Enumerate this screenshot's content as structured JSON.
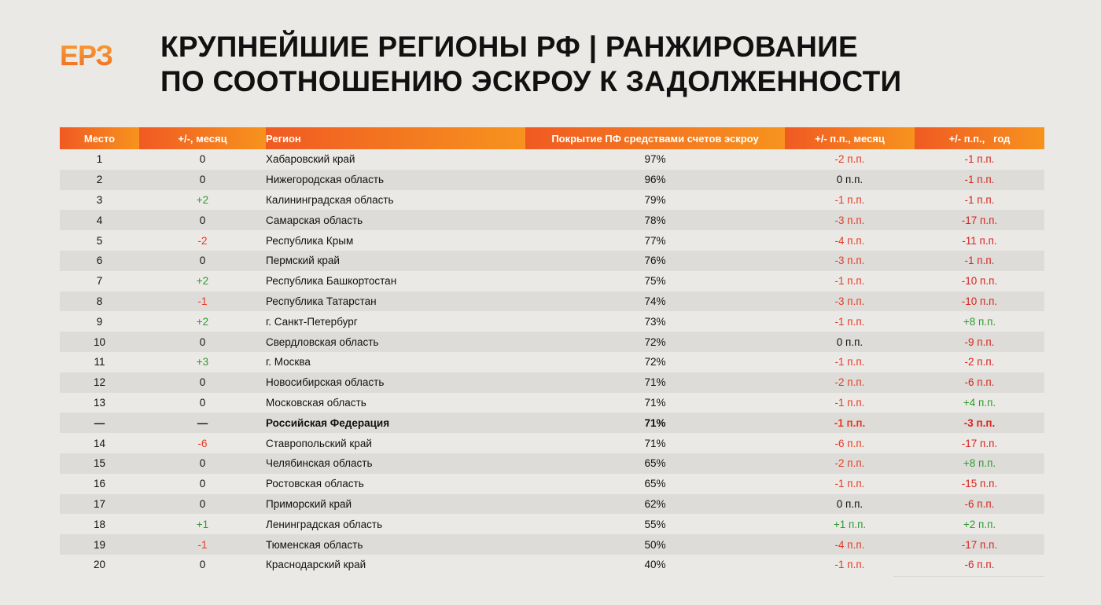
{
  "logo": "ЕРЗ",
  "title": {
    "line1": "КРУПНЕЙШИЕ РЕГИОНЫ РФ | РАНЖИРОВАНИЕ",
    "line2": "ПО СООТНОШЕНИЮ ЭСКРОУ К ЗАДОЛЖЕННОСТИ"
  },
  "columns": [
    "Место",
    "+/-, месяц",
    "Регион",
    "Покрытие ПФ средствами счетов эскроу",
    "+/- п.п., месяц",
    "+/- п.п.,   год"
  ],
  "rows": [
    {
      "rank": "1",
      "chg": "0",
      "region": "Хабаровский край",
      "cov": "97%",
      "m": "-2 п.п.",
      "y": "-1 п.п."
    },
    {
      "rank": "2",
      "chg": "0",
      "region": "Нижегородская область",
      "cov": "96%",
      "m": "0 п.п.",
      "y": "-1 п.п."
    },
    {
      "rank": "3",
      "chg": "+2",
      "region": "Калининградская область",
      "cov": "79%",
      "m": "-1 п.п.",
      "y": "-1 п.п."
    },
    {
      "rank": "4",
      "chg": "0",
      "region": "Самарская область",
      "cov": "78%",
      "m": "-3 п.п.",
      "y": "-17 п.п."
    },
    {
      "rank": "5",
      "chg": "-2",
      "region": "Республика Крым",
      "cov": "77%",
      "m": "-4 п.п.",
      "y": "-11 п.п."
    },
    {
      "rank": "6",
      "chg": "0",
      "region": "Пермский край",
      "cov": "76%",
      "m": "-3 п.п.",
      "y": "-1 п.п."
    },
    {
      "rank": "7",
      "chg": "+2",
      "region": "Республика Башкортостан",
      "cov": "75%",
      "m": "-1 п.п.",
      "y": "-10 п.п."
    },
    {
      "rank": "8",
      "chg": "-1",
      "region": "Республика Татарстан",
      "cov": "74%",
      "m": "-3 п.п.",
      "y": "-10 п.п."
    },
    {
      "rank": "9",
      "chg": "+2",
      "region": "г. Санкт-Петербург",
      "cov": "73%",
      "m": "-1 п.п.",
      "y": "+8 п.п."
    },
    {
      "rank": "10",
      "chg": "0",
      "region": "Свердловская область",
      "cov": "72%",
      "m": "0 п.п.",
      "y": "-9 п.п."
    },
    {
      "rank": "11",
      "chg": "+3",
      "region": "г. Москва",
      "cov": "72%",
      "m": "-1 п.п.",
      "y": "-2 п.п."
    },
    {
      "rank": "12",
      "chg": "0",
      "region": "Новосибирская область",
      "cov": "71%",
      "m": "-2 п.п.",
      "y": "-6 п.п."
    },
    {
      "rank": "13",
      "chg": "0",
      "region": "Московская область",
      "cov": "71%",
      "m": "-1 п.п.",
      "y": "+4 п.п."
    },
    {
      "rank": "—",
      "chg": "—",
      "region": "Российская Федерация",
      "cov": "71%",
      "m": "-1 п.п.",
      "y": "-3 п.п.",
      "total": true
    },
    {
      "rank": "14",
      "chg": "-6",
      "region": "Ставропольский край",
      "cov": "71%",
      "m": "-6 п.п.",
      "y": "-17 п.п."
    },
    {
      "rank": "15",
      "chg": "0",
      "region": "Челябинская область",
      "cov": "65%",
      "m": "-2 п.п.",
      "y": "+8 п.п."
    },
    {
      "rank": "16",
      "chg": "0",
      "region": "Ростовская область",
      "cov": "65%",
      "m": "-1 п.п.",
      "y": "-15 п.п."
    },
    {
      "rank": "17",
      "chg": "0",
      "region": "Приморский край",
      "cov": "62%",
      "m": "0 п.п.",
      "y": "-6 п.п."
    },
    {
      "rank": "18",
      "chg": "+1",
      "region": "Ленинградская область",
      "cov": "55%",
      "m": "+1 п.п.",
      "y": "+2 п.п."
    },
    {
      "rank": "19",
      "chg": "-1",
      "region": "Тюменская область",
      "cov": "50%",
      "m": "-4 п.п.",
      "y": "-17 п.п."
    },
    {
      "rank": "20",
      "chg": "0",
      "region": "Краснодарский край",
      "cov": "40%",
      "m": "-1 п.п.",
      "y": "-6 п.п."
    }
  ],
  "colors": {
    "accent_start": "#f05a22",
    "accent_end": "#f7931e",
    "positive": "#2e9a2e",
    "negative": "#e43b24",
    "background": "#ebe9e6"
  }
}
